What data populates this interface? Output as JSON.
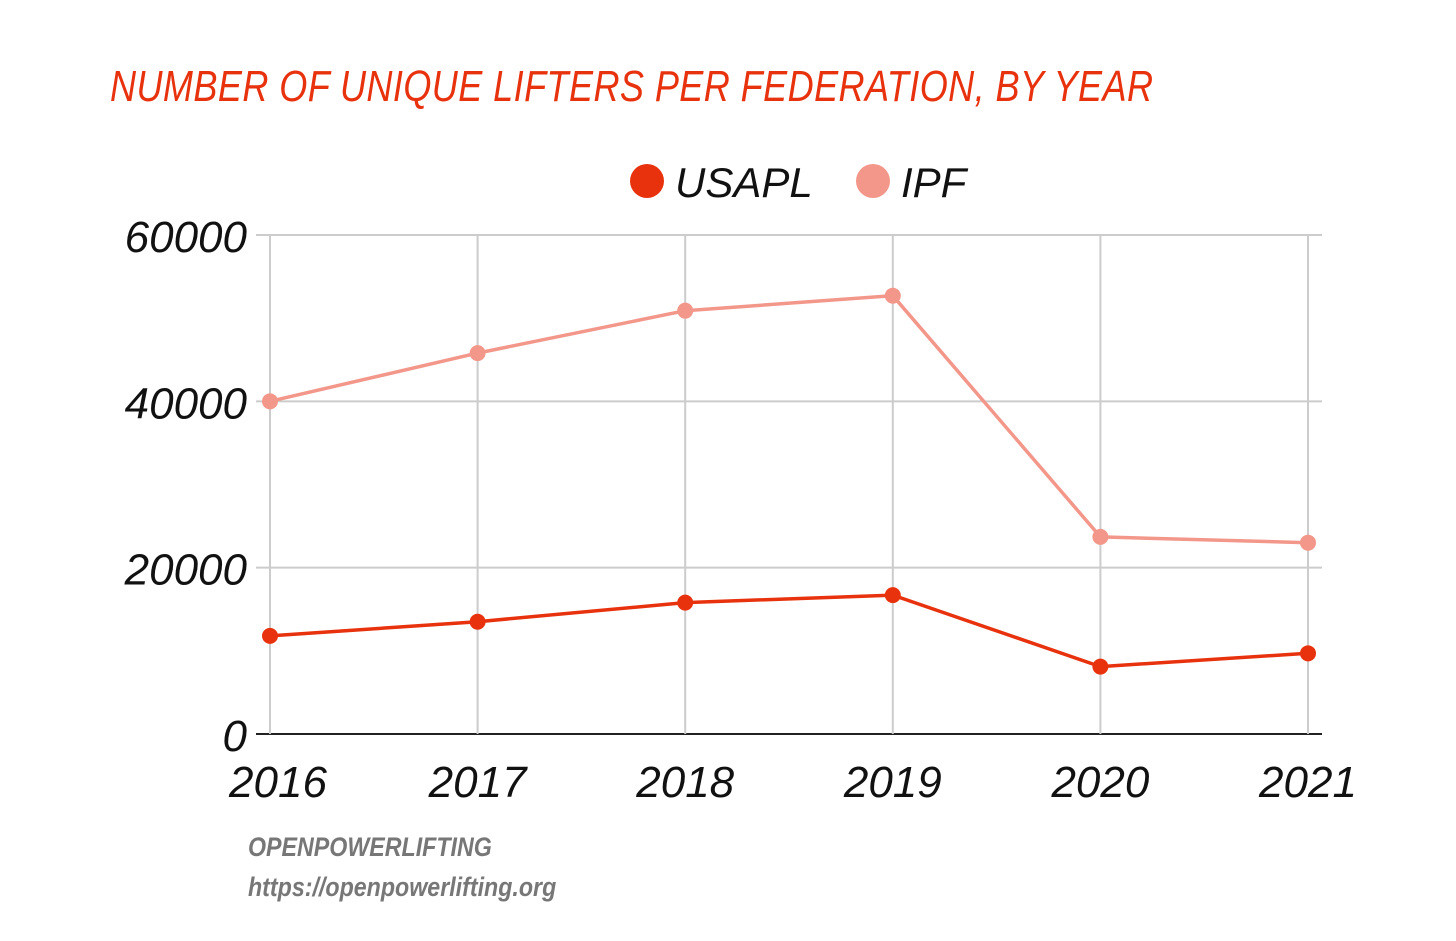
{
  "chart_data": {
    "type": "line",
    "title": "NUMBER OF UNIQUE LIFTERS PER FEDERATION, BY YEAR",
    "x": [
      "2016",
      "2017",
      "2018",
      "2019",
      "2020",
      "2021"
    ],
    "series": [
      {
        "name": "USAPL",
        "color": "#e8320e",
        "values": [
          11800,
          13500,
          15800,
          16700,
          8100,
          9700
        ]
      },
      {
        "name": "IPF",
        "color": "#f3978a",
        "values": [
          40000,
          45800,
          50900,
          52700,
          23700,
          23000
        ]
      }
    ],
    "yticks": [
      "0",
      "20000",
      "40000",
      "60000"
    ],
    "ylim": [
      0,
      60000
    ],
    "grid": true,
    "legend": "top-center"
  },
  "source": {
    "name": "OPENPOWERLIFTING",
    "url": "https://openpowerlifting.org"
  },
  "colors": {
    "title": "#e8320e",
    "grid": "#cccccc",
    "axis": "#222222",
    "text": "#111111",
    "source": "#777777"
  }
}
